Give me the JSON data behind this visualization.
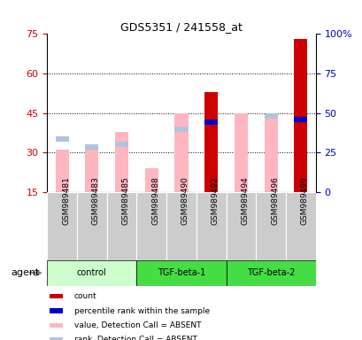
{
  "title": "GDS5351 / 241558_at",
  "samples": [
    "GSM989481",
    "GSM989483",
    "GSM989485",
    "GSM989488",
    "GSM989490",
    "GSM989492",
    "GSM989494",
    "GSM989496",
    "GSM989499"
  ],
  "value_pink": [
    31,
    31,
    38,
    24,
    45,
    null,
    45,
    44,
    null
  ],
  "rank_lightblue": [
    35,
    32,
    33,
    null,
    39,
    null,
    null,
    44,
    null
  ],
  "count_red": [
    null,
    null,
    null,
    null,
    null,
    53,
    null,
    null,
    73
  ],
  "percentile_blue": [
    null,
    null,
    null,
    null,
    null,
    44,
    null,
    null,
    46
  ],
  "ylim_left": [
    15,
    75
  ],
  "ylim_right": [
    0,
    100
  ],
  "yticks_left": [
    15,
    30,
    45,
    60,
    75
  ],
  "yticks_right": [
    0,
    25,
    50,
    75,
    100
  ],
  "left_color": "#CC0000",
  "right_color": "#0000CC",
  "group_defs": [
    {
      "start": 0,
      "end": 3,
      "name": "control",
      "color": "#CCFFCC"
    },
    {
      "start": 3,
      "end": 6,
      "name": "TGF-beta-1",
      "color": "#44DD44"
    },
    {
      "start": 6,
      "end": 9,
      "name": "TGF-beta-2",
      "color": "#44DD44"
    }
  ],
  "legend_items": [
    {
      "color": "#CC0000",
      "label": "count"
    },
    {
      "color": "#0000CC",
      "label": "percentile rank within the sample"
    },
    {
      "color": "#FFB6C1",
      "label": "value, Detection Call = ABSENT"
    },
    {
      "color": "#B0C4DE",
      "label": "rank, Detection Call = ABSENT"
    }
  ],
  "pink_color": "#FFB6C1",
  "lightblue_color": "#B0C4DE",
  "red_color": "#CC0000",
  "blue_color": "#0000CC",
  "gray_color": "#CCCCCC"
}
